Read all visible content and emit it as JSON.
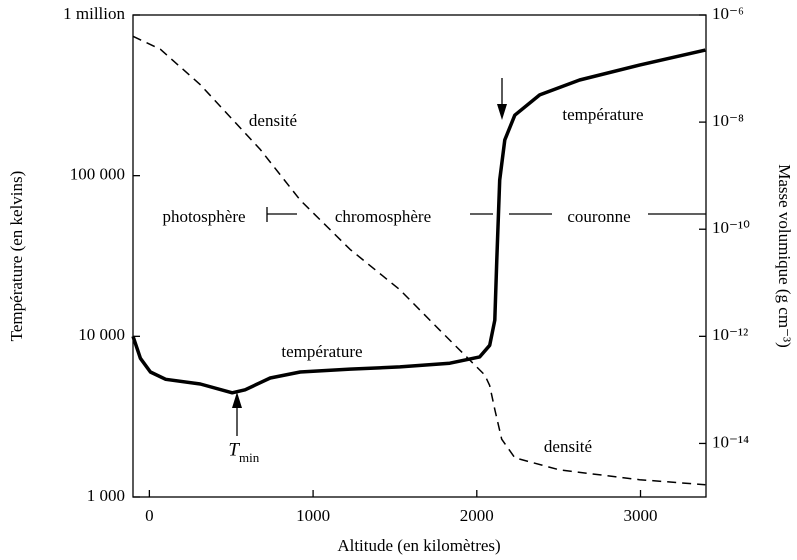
{
  "chart_data": {
    "type": "line",
    "x_label": "Altitude (en kilomètres)",
    "y_label": "Température (en kelvins)",
    "y2_label": "Masse volumique (g cm⁻³)",
    "xlim": [
      -100,
      3400
    ],
    "xticks": [
      0,
      1000,
      2000,
      3000
    ],
    "ylim": [
      1000,
      1000000
    ],
    "log_y": true,
    "yticks": [
      {
        "value": 1000,
        "label": "1 000"
      },
      {
        "value": 10000,
        "label": "10 000"
      },
      {
        "value": 100000,
        "label": "100 000"
      },
      {
        "value": 1000000,
        "label": "1 million"
      }
    ],
    "y2lim": [
      1e-15,
      1e-06
    ],
    "log_y2": true,
    "y2ticks": [
      {
        "value": 1e-06,
        "label": "10⁻⁶"
      },
      {
        "value": 1e-08,
        "label": "10⁻⁸"
      },
      {
        "value": 1e-10,
        "label": "10⁻¹⁰"
      },
      {
        "value": 1e-12,
        "label": "10⁻¹²"
      },
      {
        "value": 1e-14,
        "label": "10⁻¹⁴"
      }
    ],
    "grid": false,
    "series": [
      {
        "color": "#000000",
        "dashed": false,
        "axis": "y",
        "x": [
          -100,
          -55,
          6,
          100,
          311,
          506,
          585,
          738,
          921,
          1226,
          1530,
          1835,
          2018,
          2079,
          2110,
          2122,
          2140,
          2171,
          2232,
          2384,
          2628,
          2994,
          3396
        ],
        "values": [
          10000,
          7300,
          6000,
          5400,
          5050,
          4450,
          4650,
          5500,
          6000,
          6250,
          6450,
          6800,
          7450,
          8800,
          12600,
          30000,
          94000,
          167000,
          238000,
          318000,
          394000,
          488000,
          605000
        ]
      },
      {
        "color": "#000000",
        "dashed": true,
        "axis": "y2",
        "x": [
          -100,
          67,
          311,
          677,
          921,
          1226,
          1530,
          1774,
          1957,
          2049,
          2079,
          2110,
          2152,
          2232,
          2506,
          2994,
          3396
        ],
        "values": [
          4e-07,
          2.3e-07,
          5e-08,
          3.1e-09,
          3.5e-10,
          4.2e-11,
          7.4e-12,
          1.3e-12,
          3.6e-13,
          1.9e-13,
          1.2e-13,
          4.3e-14,
          1.2e-14,
          5.4e-15,
          3.2e-15,
          2.1e-15,
          1.7e-15
        ]
      }
    ],
    "annotations": [
      "densité",
      "température",
      "température",
      "densité",
      "photosphère",
      "chromosphère",
      "couronne"
    ],
    "tmin": {
      "symbol": "T",
      "subscript": "min"
    }
  }
}
